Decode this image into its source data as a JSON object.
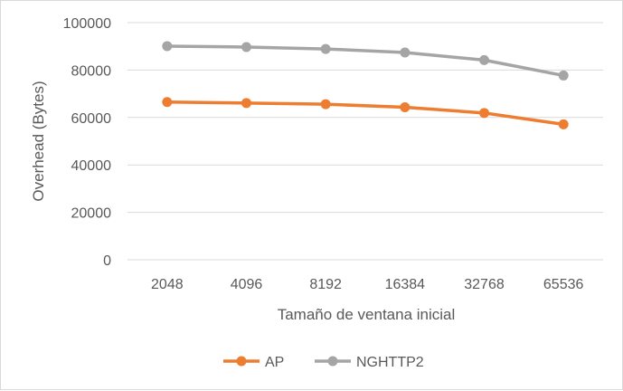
{
  "chart_data": {
    "type": "line",
    "title": "",
    "xlabel": "Tamaño de ventana inicial",
    "ylabel": "Overhead (Bytes)",
    "categories": [
      "2048",
      "4096",
      "8192",
      "16384",
      "32768",
      "65536"
    ],
    "ylim": [
      0,
      100000
    ],
    "yticks": [
      0,
      20000,
      40000,
      60000,
      80000,
      100000
    ],
    "grid": true,
    "legend_position": "bottom",
    "series": [
      {
        "name": "AP",
        "color": "#ed7d31",
        "values": [
          66500,
          66100,
          65600,
          64300,
          61900,
          57100
        ]
      },
      {
        "name": "NGHTTP2",
        "color": "#a5a5a5",
        "values": [
          90100,
          89700,
          88900,
          87400,
          84200,
          77700
        ]
      }
    ]
  }
}
